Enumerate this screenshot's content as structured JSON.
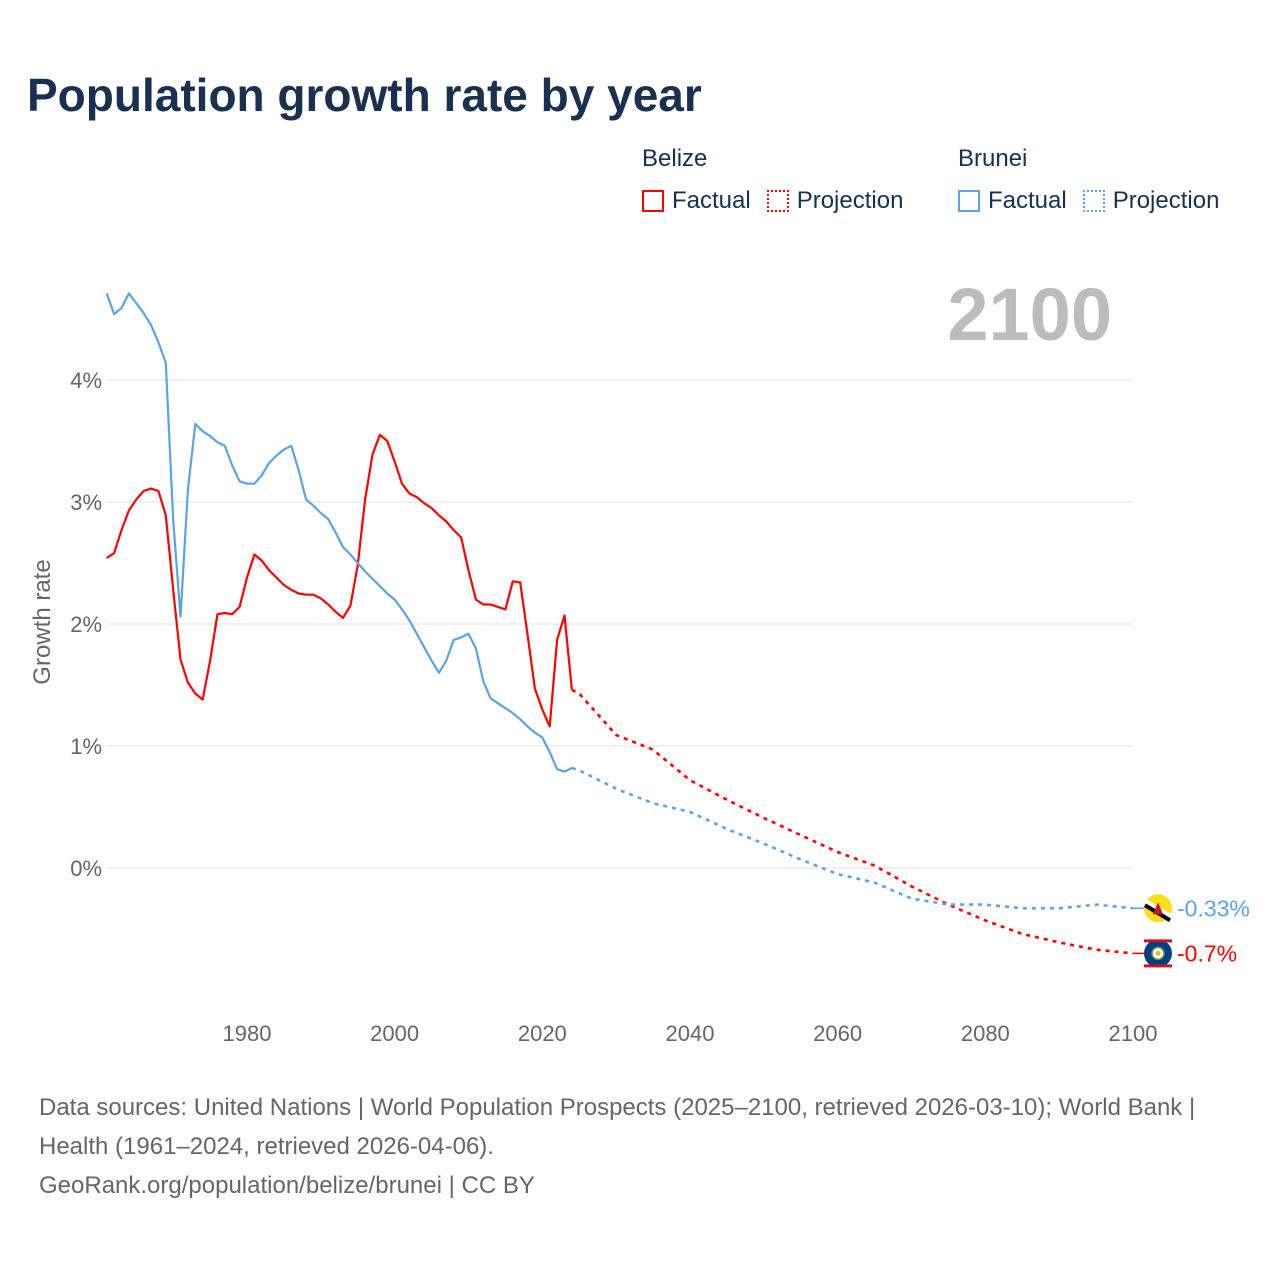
{
  "title": "Population growth rate by year",
  "current_year": "2100",
  "legend": [
    {
      "country": "Belize",
      "factual": "Factual",
      "projection": "Projection",
      "color": "#ff0000"
    },
    {
      "country": "Brunei",
      "factual": "Factual",
      "projection": "Projection",
      "color": "#5ba3e8"
    }
  ],
  "footer": {
    "sources": "Data sources: United Nations | World Population Prospects (2025–2100, retrieved 2026-03-10); World Bank | Health (1961–2024, retrieved 2026-04-06).",
    "credit": "GeoRank.org/population/belize/brunei | CC BY"
  },
  "chart_data": {
    "type": "line",
    "title": "Population growth rate by year",
    "xlabel": "",
    "ylabel": "Growth rate",
    "xlim": [
      1961,
      2100
    ],
    "ylim": [
      -1.1,
      4.8
    ],
    "x_ticks": [
      1980,
      2000,
      2020,
      2040,
      2060,
      2080,
      2100
    ],
    "x_tick_labels": [
      "1980",
      "2000",
      "2020",
      "2040",
      "2060",
      "2080",
      "2100"
    ],
    "y_ticks": [
      0,
      1,
      2,
      3,
      4
    ],
    "y_tick_labels": [
      "0%",
      "1%",
      "2%",
      "3%",
      "4%"
    ],
    "grid": true,
    "legend_position": "top-right",
    "series": [
      {
        "name": "Belize",
        "color": "#ff0000",
        "end_label": "-0.7%",
        "flag": "belize-flag",
        "factual": {
          "start_year": 1961,
          "values": [
            2.54,
            2.58,
            2.77,
            2.93,
            3.02,
            3.09,
            3.11,
            3.09,
            2.89,
            2.28,
            1.71,
            1.52,
            1.43,
            1.38,
            1.7,
            2.08,
            2.09,
            2.08,
            2.14,
            2.38,
            2.57,
            2.52,
            2.44,
            2.38,
            2.32,
            2.28,
            2.25,
            2.24,
            2.24,
            2.21,
            2.16,
            2.1,
            2.05,
            2.15,
            2.48,
            3.02,
            3.39,
            3.55,
            3.5,
            3.33,
            3.15,
            3.07,
            3.04,
            2.99,
            2.95,
            2.89,
            2.84,
            2.77,
            2.71,
            2.44,
            2.2,
            2.16,
            2.16,
            2.14,
            2.12,
            2.35,
            2.34,
            1.91,
            1.47,
            1.3,
            1.16,
            1.87,
            2.07,
            1.46
          ]
        },
        "projection": {
          "x": [
            2024,
            2025,
            2030,
            2035,
            2040,
            2045,
            2050,
            2055,
            2060,
            2065,
            2070,
            2075,
            2080,
            2085,
            2090,
            2095,
            2100
          ],
          "y": [
            1.46,
            1.43,
            1.09,
            0.97,
            0.72,
            0.56,
            0.41,
            0.27,
            0.13,
            0.02,
            -0.15,
            -0.3,
            -0.43,
            -0.54,
            -0.61,
            -0.67,
            -0.7
          ]
        }
      },
      {
        "name": "Brunei",
        "color": "#5ba3e8",
        "end_label": "-0.33%",
        "flag": "brunei-flag",
        "factual": {
          "start_year": 1961,
          "values": [
            4.71,
            4.54,
            4.59,
            4.71,
            4.63,
            4.55,
            4.45,
            4.31,
            4.14,
            2.85,
            2.06,
            3.1,
            3.64,
            3.58,
            3.54,
            3.49,
            3.46,
            3.3,
            3.17,
            3.15,
            3.15,
            3.22,
            3.32,
            3.38,
            3.43,
            3.46,
            3.26,
            3.02,
            2.97,
            2.91,
            2.86,
            2.75,
            2.63,
            2.57,
            2.5,
            2.43,
            2.37,
            2.31,
            2.25,
            2.2,
            2.12,
            2.03,
            1.92,
            1.81,
            1.7,
            1.6,
            1.7,
            1.87,
            1.89,
            1.92,
            1.8,
            1.53,
            1.39,
            1.35,
            1.31,
            1.27,
            1.22,
            1.16,
            1.11,
            1.07,
            0.95,
            0.81,
            0.79,
            0.82
          ]
        },
        "projection": {
          "x": [
            2024,
            2025,
            2030,
            2035,
            2040,
            2045,
            2050,
            2055,
            2060,
            2065,
            2070,
            2075,
            2080,
            2085,
            2090,
            2095,
            2100
          ],
          "y": [
            0.82,
            0.8,
            0.65,
            0.53,
            0.46,
            0.32,
            0.2,
            0.07,
            -0.05,
            -0.12,
            -0.25,
            -0.3,
            -0.3,
            -0.33,
            -0.33,
            -0.3,
            -0.33
          ]
        }
      }
    ]
  }
}
